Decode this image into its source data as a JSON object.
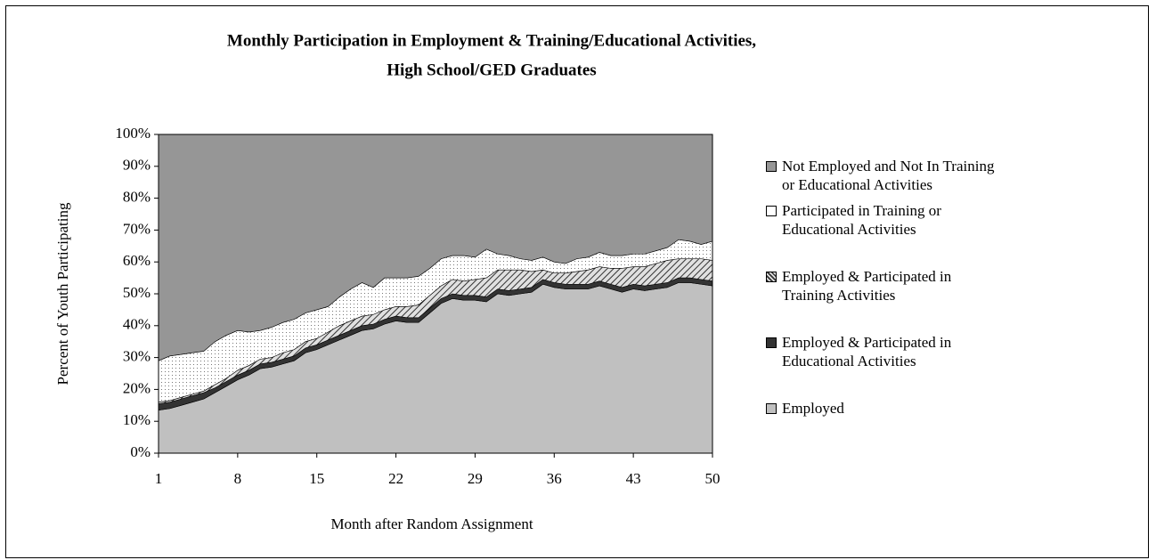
{
  "chart_data": {
    "type": "stacked_area",
    "title": [
      "Monthly Participation in Employment & Training/Educational Activities,",
      "High School/GED Graduates"
    ],
    "x_label": "Month after Random Assignment",
    "y_label": "Percent of Youth Participating",
    "x": [
      1,
      2,
      3,
      4,
      5,
      6,
      7,
      8,
      9,
      10,
      11,
      12,
      13,
      14,
      15,
      16,
      17,
      18,
      19,
      20,
      21,
      22,
      23,
      24,
      25,
      26,
      27,
      28,
      29,
      30,
      31,
      32,
      33,
      34,
      35,
      36,
      37,
      38,
      39,
      40,
      41,
      42,
      43,
      44,
      45,
      46,
      47,
      48,
      49,
      50
    ],
    "xlim": [
      1,
      50
    ],
    "xticks": [
      1,
      8,
      15,
      22,
      29,
      36,
      43,
      50
    ],
    "ylim": [
      0,
      100
    ],
    "yticks": [
      {
        "value": 0,
        "label": "0%"
      },
      {
        "value": 10,
        "label": "10%"
      },
      {
        "value": 20,
        "label": "20%"
      },
      {
        "value": 30,
        "label": "30%"
      },
      {
        "value": 40,
        "label": "40%"
      },
      {
        "value": 50,
        "label": "50%"
      },
      {
        "value": 60,
        "label": "60%"
      },
      {
        "value": 70,
        "label": "70%"
      },
      {
        "value": 80,
        "label": "80%"
      },
      {
        "value": 90,
        "label": "90%"
      },
      {
        "value": 100,
        "label": "100%"
      }
    ],
    "series": [
      {
        "name": "Employed",
        "color": "#c0c0c0",
        "pattern": "solid",
        "values": [
          13.5,
          14,
          15,
          16,
          17,
          19,
          21,
          23,
          24.5,
          26.5,
          27,
          28,
          29,
          31.5,
          32.5,
          34,
          35.5,
          37,
          38.5,
          39,
          40.5,
          41.5,
          41,
          41,
          44,
          47,
          48.5,
          48,
          48,
          47.5,
          50,
          49.5,
          50,
          50.5,
          53,
          52,
          51.5,
          51.5,
          51.5,
          52.5,
          51.5,
          50.5,
          51.5,
          51,
          51.5,
          52,
          53.5,
          53.5,
          53,
          52.5
        ]
      },
      {
        "name": "Employed & Participated in Educational Activities",
        "color": "#333333",
        "pattern": "solid",
        "values": [
          2,
          2,
          2,
          2,
          2,
          1.5,
          1.5,
          1.5,
          1.5,
          1.5,
          1.5,
          1.5,
          1.5,
          1.5,
          1.5,
          1.5,
          1.5,
          1.5,
          1.5,
          1.5,
          1.5,
          1.5,
          1.5,
          1.5,
          1.5,
          1.5,
          1.5,
          1.5,
          1.5,
          1.5,
          1.5,
          1.5,
          1.5,
          1.5,
          1.5,
          1.5,
          1.5,
          1.5,
          1.5,
          1.5,
          1.5,
          1.5,
          1.5,
          1.5,
          1.5,
          1.5,
          1.5,
          1.5,
          1.5,
          1.5
        ]
      },
      {
        "name": "Employed & Participated in Training Activities",
        "color": "#a0a0a0",
        "pattern": "hatch",
        "values": [
          0.5,
          0.5,
          0.5,
          0.5,
          0.5,
          1,
          1,
          1.5,
          1.5,
          1.5,
          1.5,
          2,
          2,
          2,
          2,
          2.5,
          3,
          3,
          3,
          3,
          3,
          3,
          3.5,
          4,
          4,
          4,
          4.5,
          4.5,
          5,
          6,
          6,
          6.5,
          6,
          5,
          3,
          3,
          3.5,
          4,
          4.5,
          4.5,
          5,
          6,
          5.5,
          6,
          6.5,
          7,
          6,
          6,
          6.5,
          6.5
        ]
      },
      {
        "name": "Participated in Training or Educational Activities",
        "color": "#ffffff",
        "pattern": "dots",
        "values": [
          13,
          14,
          13.5,
          13,
          12.5,
          13.5,
          13.5,
          12.5,
          10.5,
          9,
          9.5,
          9.5,
          9.5,
          9,
          9,
          8,
          9,
          10,
          10.5,
          8.5,
          10,
          9,
          9,
          9,
          8.5,
          8.5,
          7.5,
          8,
          7,
          9,
          5,
          4.5,
          3.5,
          3.5,
          4,
          3.5,
          3,
          4,
          4,
          4.5,
          4,
          4,
          4,
          4,
          4,
          4,
          6,
          5.5,
          4.5,
          6
        ]
      },
      {
        "name": "Not Employed and Not In Training or Educational Activities",
        "color": "#969696",
        "pattern": "solid",
        "values": [
          71,
          69.5,
          69,
          68.5,
          68,
          65,
          63,
          61.5,
          62,
          61.5,
          60.5,
          59,
          58,
          56,
          55,
          54,
          51,
          48.5,
          46.5,
          48,
          45,
          45,
          45,
          44.5,
          42,
          39,
          38,
          38,
          38.5,
          36,
          37.5,
          38,
          39,
          39.5,
          38.5,
          40,
          40.5,
          39,
          38.5,
          37,
          38,
          38,
          37.5,
          37.5,
          36.5,
          35.5,
          33,
          33.5,
          34.5,
          33.5
        ]
      }
    ]
  }
}
